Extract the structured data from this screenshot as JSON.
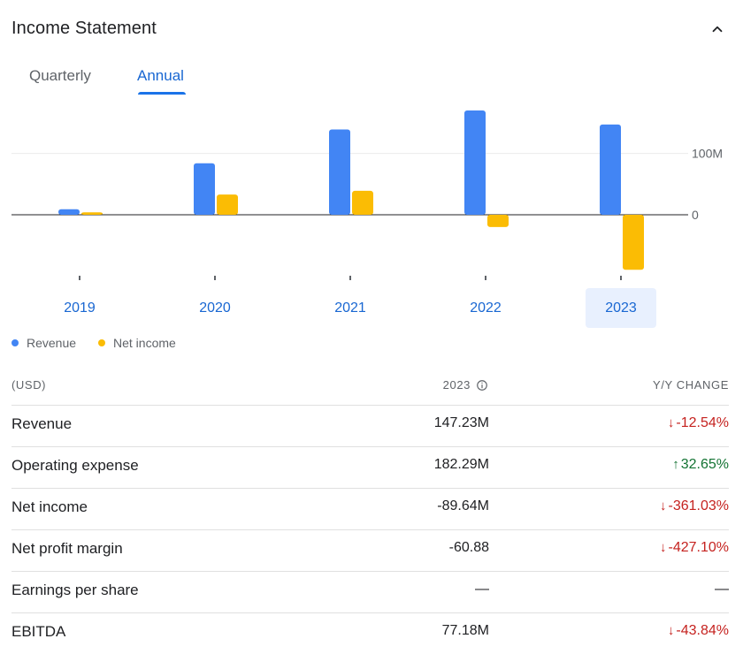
{
  "header": {
    "title": "Income Statement",
    "collapse_icon": "chevron-up-icon"
  },
  "tabs": [
    {
      "label": "Quarterly",
      "selected": false
    },
    {
      "label": "Annual",
      "selected": true
    }
  ],
  "colors": {
    "revenue": "#4285f4",
    "net_income": "#fbbc04",
    "selected_year_bg": "#e8f0fe",
    "link_blue": "#1967d2",
    "down": "#c5221f",
    "up": "#137333"
  },
  "chart_data": {
    "type": "bar",
    "categories": [
      "2019",
      "2020",
      "2021",
      "2022",
      "2023"
    ],
    "selected_category": "2023",
    "series": [
      {
        "name": "Revenue",
        "values": [
          9,
          84,
          139,
          170,
          147.23
        ]
      },
      {
        "name": "Net income",
        "values": [
          4,
          33,
          39,
          -20,
          -89.64
        ]
      }
    ],
    "y_tick_labels": [
      "100M",
      "0"
    ],
    "y_ticks": [
      100,
      0
    ],
    "ylim": [
      -110,
      170
    ],
    "legend": [
      "Revenue",
      "Net income"
    ],
    "legend_position": "bottom-left"
  },
  "table": {
    "headers": {
      "label": "(USD)",
      "year": "2023",
      "change": "Y/Y CHANGE"
    },
    "rows": [
      {
        "label": "Revenue",
        "value": "147.23M",
        "change": "-12.54%",
        "direction": "down"
      },
      {
        "label": "Operating expense",
        "value": "182.29M",
        "change": "32.65%",
        "direction": "up"
      },
      {
        "label": "Net income",
        "value": "-89.64M",
        "change": "-361.03%",
        "direction": "down"
      },
      {
        "label": "Net profit margin",
        "value": "-60.88",
        "change": "-427.10%",
        "direction": "down"
      },
      {
        "label": "Earnings per share",
        "value": "—",
        "change": "—",
        "direction": "none"
      },
      {
        "label": "EBITDA",
        "value": "77.18M",
        "change": "-43.84%",
        "direction": "down"
      }
    ]
  }
}
